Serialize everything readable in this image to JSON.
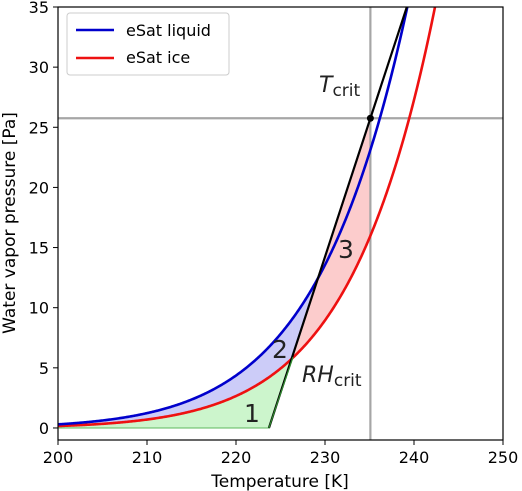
{
  "chart_data": {
    "type": "line",
    "xlabel": "Temperature [K]",
    "ylabel": "Water vapor pressure [Pa]",
    "xlim": [
      200,
      250
    ],
    "ylim": [
      -1,
      35
    ],
    "xticks": [
      200,
      210,
      220,
      230,
      240,
      250
    ],
    "yticks": [
      0,
      5,
      10,
      15,
      20,
      25,
      30,
      35
    ],
    "legend_position": "upper-left",
    "series": [
      {
        "name": "eSat liquid",
        "color": "#0000cc"
      },
      {
        "name": "eSat ice",
        "color": "#ee1111"
      }
    ],
    "critical_point": {
      "T": 235.1,
      "e": 25.75
    },
    "rh_crit_point": {
      "T": 226.4,
      "e": 5.9
    },
    "mixing_line": {
      "x0": 223.7,
      "color": "#000000"
    },
    "annotations": {
      "t_crit_main": "T",
      "t_crit_sub": "crit",
      "rh_crit_main": "RH",
      "rh_crit_sub": "crit"
    },
    "regions": [
      {
        "label": "1",
        "color": "#ccf5cc"
      },
      {
        "label": "2",
        "color": "#ccccf8"
      },
      {
        "label": "3",
        "color": "#fccccc"
      }
    ]
  }
}
